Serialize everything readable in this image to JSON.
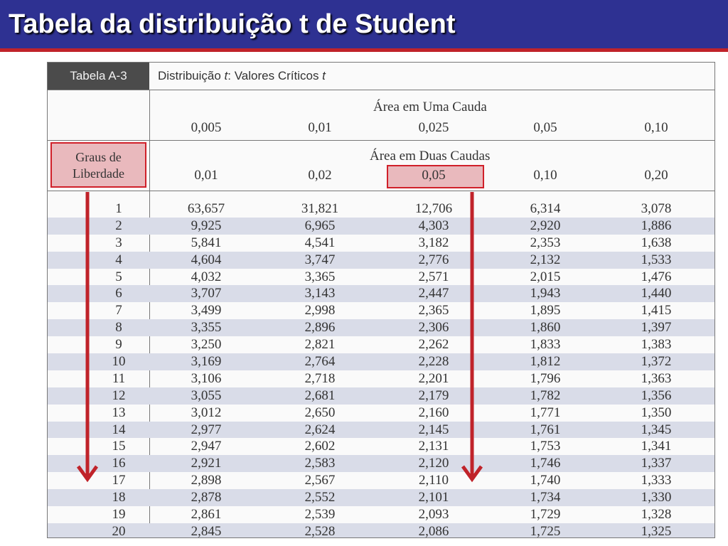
{
  "slide": {
    "title": "Tabela da distribuição t de Student"
  },
  "table": {
    "tag": "Tabela A-3",
    "caption": "Distribuição t: Valores Críticos t",
    "one_tail_label": "Área em Uma Cauda",
    "one_tail_values": [
      "0,005",
      "0,01",
      "0,025",
      "0,05",
      "0,10"
    ],
    "two_tail_label": "Área em Duas Caudas",
    "two_tail_values": [
      "0,01",
      "0,02",
      "0,05",
      "0,10",
      "0,20"
    ],
    "df_label_line1": "Graus de",
    "df_label_line2": "Liberdade",
    "highlight_color": "#e9b9bd",
    "arrow_color": "#c0232a",
    "rows": [
      [
        "1",
        "63,657",
        "31,821",
        "12,706",
        "6,314",
        "3,078"
      ],
      [
        "2",
        "9,925",
        "6,965",
        "4,303",
        "2,920",
        "1,886"
      ],
      [
        "3",
        "5,841",
        "4,541",
        "3,182",
        "2,353",
        "1,638"
      ],
      [
        "4",
        "4,604",
        "3,747",
        "2,776",
        "2,132",
        "1,533"
      ],
      [
        "5",
        "4,032",
        "3,365",
        "2,571",
        "2,015",
        "1,476"
      ],
      [
        "6",
        "3,707",
        "3,143",
        "2,447",
        "1,943",
        "1,440"
      ],
      [
        "7",
        "3,499",
        "2,998",
        "2,365",
        "1,895",
        "1,415"
      ],
      [
        "8",
        "3,355",
        "2,896",
        "2,306",
        "1,860",
        "1,397"
      ],
      [
        "9",
        "3,250",
        "2,821",
        "2,262",
        "1,833",
        "1,383"
      ],
      [
        "10",
        "3,169",
        "2,764",
        "2,228",
        "1,812",
        "1,372"
      ],
      [
        "11",
        "3,106",
        "2,718",
        "2,201",
        "1,796",
        "1,363"
      ],
      [
        "12",
        "3,055",
        "2,681",
        "2,179",
        "1,782",
        "1,356"
      ],
      [
        "13",
        "3,012",
        "2,650",
        "2,160",
        "1,771",
        "1,350"
      ],
      [
        "14",
        "2,977",
        "2,624",
        "2,145",
        "1,761",
        "1,345"
      ],
      [
        "15",
        "2,947",
        "2,602",
        "2,131",
        "1,753",
        "1,341"
      ],
      [
        "16",
        "2,921",
        "2,583",
        "2,120",
        "1,746",
        "1,337"
      ],
      [
        "17",
        "2,898",
        "2,567",
        "2,110",
        "1,740",
        "1,333"
      ],
      [
        "18",
        "2,878",
        "2,552",
        "2,101",
        "1,734",
        "1,330"
      ],
      [
        "19",
        "2,861",
        "2,539",
        "2,093",
        "1,729",
        "1,328"
      ],
      [
        "20",
        "2,845",
        "2,528",
        "2,086",
        "1,725",
        "1,325"
      ]
    ]
  }
}
